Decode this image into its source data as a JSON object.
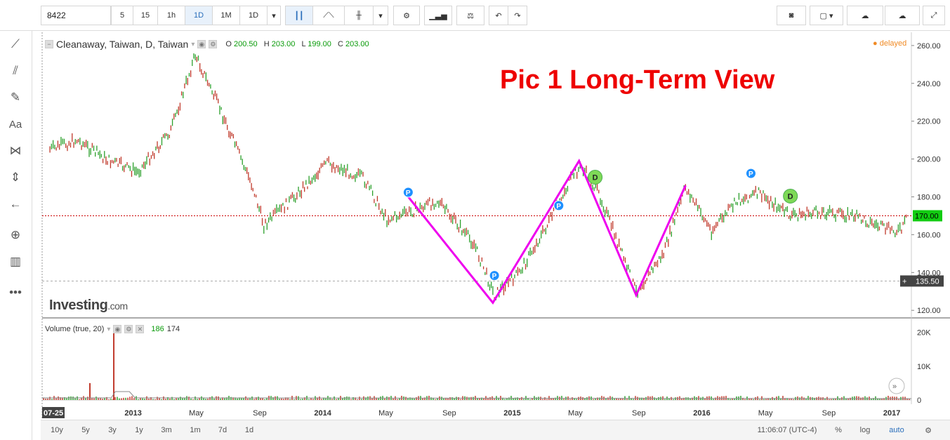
{
  "toolbar": {
    "symbol": "8422",
    "intervals": [
      "5",
      "15",
      "1h",
      "1D",
      "1M",
      "1D"
    ],
    "active_interval": "1D"
  },
  "left_tools": [
    "crosshair-icon",
    "trend-line-icon",
    "fib-icon",
    "brush-icon",
    "text-icon",
    "pattern-icon",
    "measure-icon",
    "back-arrow-icon",
    "zoom-icon",
    "ruler-icon",
    "more-icon"
  ],
  "legend": {
    "title": "Cleanaway, Taiwan, D, Taiwan",
    "o_label": "O",
    "o": "200.50",
    "h_label": "H",
    "h": "203.00",
    "l_label": "L",
    "l": "199.00",
    "c_label": "C",
    "c": "203.00"
  },
  "status": {
    "delayed": "delayed"
  },
  "annotation": "Pic 1 Long-Term View",
  "brand": {
    "name": "Investing",
    "suffix": ".com"
  },
  "volume_legend": {
    "label": "Volume (true, 20)",
    "v1": "186",
    "v2": "174"
  },
  "bottom": {
    "ranges": [
      "10y",
      "5y",
      "3y",
      "1y",
      "3m",
      "1m",
      "7d",
      "1d"
    ],
    "time": "11:06:07 (UTC-4)",
    "pct": "%",
    "log": "log",
    "auto": "auto"
  },
  "colors": {
    "up": "#2ca02c",
    "down": "#c0392b",
    "zigzag": "#ee00ee",
    "accent": "#2a6ebb",
    "price_tag": "#11cc11"
  },
  "chart_data": {
    "type": "line",
    "title": "Cleanaway, Taiwan, D, Taiwan",
    "price_axis": {
      "ticks": [
        120,
        140,
        160,
        180,
        200,
        220,
        240,
        260
      ],
      "tick_labels": [
        "120.00",
        "140.00",
        "160.00",
        "180.00",
        "200.00",
        "220.00",
        "240.00",
        "260.00"
      ],
      "ylim": [
        116,
        267
      ]
    },
    "current_price": "170.00",
    "hline_price": "135.50",
    "time_axis": [
      "07-25",
      "2013",
      "May",
      "Sep",
      "2014",
      "May",
      "Sep",
      "2015",
      "May",
      "Sep",
      "2016",
      "May",
      "Sep",
      "2017"
    ],
    "series": [
      {
        "x": [
          "2012-07-25",
          "2012-09-15",
          "2012-11-10",
          "2013-01-10",
          "2013-03-15",
          "2013-05-01",
          "2013-06-20",
          "2013-08-20",
          "2013-09-10",
          "2013-11-01",
          "2014-01-10",
          "2014-03-20",
          "2014-05-05",
          "2014-06-20",
          "2014-08-10",
          "2014-10-20",
          "2014-11-28",
          "2015-01-15",
          "2015-03-10",
          "2015-04-30",
          "2015-05-15",
          "2015-06-20",
          "2015-08-28",
          "2015-10-20",
          "2015-12-01",
          "2016-01-20",
          "2016-03-10",
          "2016-04-20",
          "2016-06-20",
          "2016-08-20",
          "2016-10-20",
          "2016-12-20",
          "2017-01-20",
          "2017-02-01"
        ],
        "values": [
          205,
          210,
          200,
          193,
          215,
          255,
          225,
          185,
          165,
          178,
          198,
          190,
          168,
          172,
          178,
          155,
          128,
          140,
          165,
          192,
          196,
          180,
          130,
          150,
          185,
          162,
          178,
          182,
          170,
          172,
          170,
          163,
          162,
          170
        ]
      }
    ],
    "zigzag": {
      "x": [
        "2014-06-15",
        "2014-11-25",
        "2015-05-10",
        "2015-08-28",
        "2015-12-01"
      ],
      "values": [
        180,
        124,
        199,
        128,
        186
      ]
    },
    "volume": {
      "ylim": [
        0,
        22000
      ],
      "ticks": [
        "0",
        "10K",
        "20K"
      ],
      "spikes": [
        {
          "x": "2012-10-10",
          "value": 5000
        },
        {
          "x": "2012-11-25",
          "value": 20000
        }
      ]
    },
    "event_markers": [
      {
        "x": "2014-06-15",
        "label": "P"
      },
      {
        "x": "2014-11-28",
        "label": "P"
      },
      {
        "x": "2015-04-01",
        "label": "P"
      },
      {
        "x": "2015-06-10",
        "label": "D"
      },
      {
        "x": "2016-04-05",
        "label": "P"
      },
      {
        "x": "2016-06-20",
        "label": "D"
      }
    ]
  }
}
